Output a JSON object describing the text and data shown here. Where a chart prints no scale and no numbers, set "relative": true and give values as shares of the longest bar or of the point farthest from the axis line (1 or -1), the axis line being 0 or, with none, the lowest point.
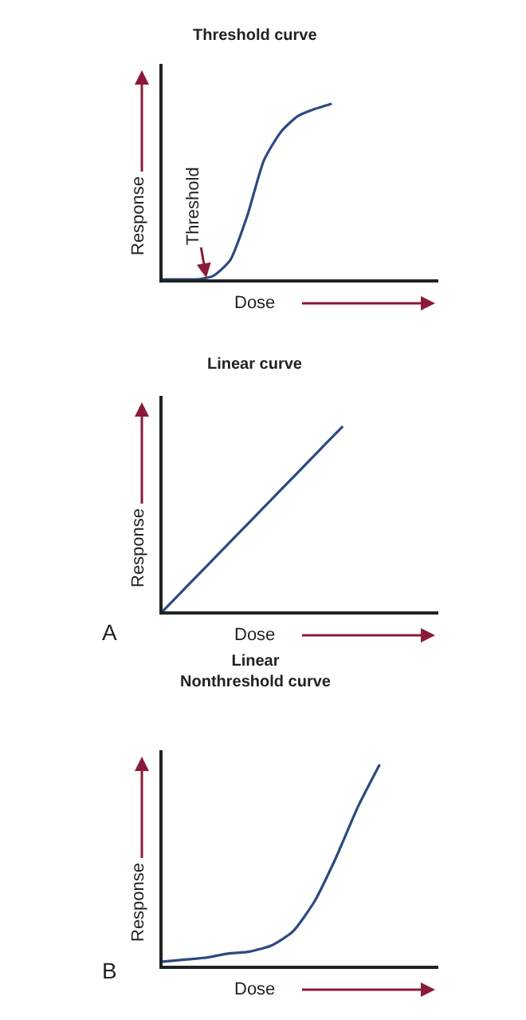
{
  "chart_data": [
    {
      "type": "line",
      "title": "Threshold curve",
      "xlabel": "Dose",
      "ylabel": "Response",
      "relative": true,
      "categories": [
        null,
        null,
        null,
        null,
        null,
        null,
        null,
        null,
        null,
        null,
        null
      ],
      "series": [
        {
          "color": "#2b4a7e",
          "values": [
            0,
            0,
            0,
            0.02,
            0.11,
            0.36,
            0.68,
            0.84,
            0.93,
            0.97,
            1
          ]
        }
      ],
      "annotations": [
        "Threshold"
      ],
      "marker": "none",
      "line_style": "solid"
    },
    {
      "type": "line",
      "title": "Linear curve",
      "xlabel": "Dose",
      "ylabel": "Response",
      "relative": true,
      "categories": [
        null,
        null,
        null,
        null,
        null,
        null,
        null,
        null,
        null,
        null,
        null
      ],
      "series": [
        {
          "color": "#2b4a7e",
          "values": [
            0,
            0.1,
            0.2,
            0.3,
            0.4,
            0.5,
            0.6,
            0.7,
            0.8,
            0.9,
            1
          ]
        }
      ],
      "annotations": [
        "A"
      ],
      "marker": "none",
      "line_style": "solid"
    },
    {
      "type": "line",
      "title": "Linear\nNonthreshold curve",
      "xlabel": "Dose",
      "ylabel": "Response",
      "relative": true,
      "categories": [
        null,
        null,
        null,
        null,
        null,
        null,
        null,
        null,
        null,
        null,
        null
      ],
      "series": [
        {
          "color": "#2b4a7e",
          "values": [
            0.02,
            0.03,
            0.04,
            0.06,
            0.07,
            0.1,
            0.17,
            0.32,
            0.54,
            0.79,
            1
          ]
        }
      ],
      "annotations": [
        "B"
      ],
      "marker": "none",
      "line_style": "solid"
    }
  ]
}
